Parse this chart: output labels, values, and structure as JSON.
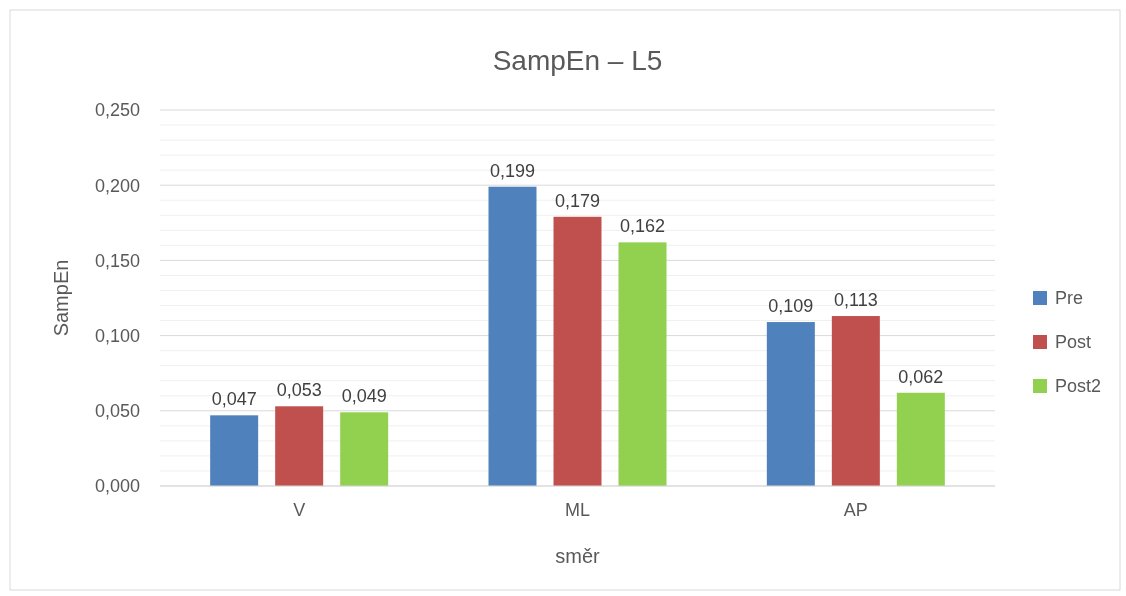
{
  "chart_data": {
    "type": "bar",
    "title": "SampEn – L5",
    "xlabel": "směr",
    "ylabel": "SampEn",
    "categories": [
      "V",
      "ML",
      "AP"
    ],
    "series": [
      {
        "name": "Pre",
        "color": "#4f81bd",
        "values": [
          0.047,
          0.199,
          0.109
        ],
        "value_labels": [
          "0,047",
          "0,199",
          "0,109"
        ]
      },
      {
        "name": "Post",
        "color": "#c0504d",
        "values": [
          0.053,
          0.179,
          0.113
        ],
        "value_labels": [
          "0,053",
          "0,179",
          "0,113"
        ]
      },
      {
        "name": "Post2",
        "color": "#92d050",
        "values": [
          0.049,
          0.162,
          0.062
        ],
        "value_labels": [
          "0,049",
          "0,162",
          "0,062"
        ]
      }
    ],
    "ylim": [
      0,
      0.25
    ],
    "yticks": [
      {
        "value": 0,
        "label": "0,000"
      },
      {
        "value": 0.01,
        "label": null
      },
      {
        "value": 0.02,
        "label": null
      },
      {
        "value": 0.03,
        "label": null
      },
      {
        "value": 0.04,
        "label": null
      },
      {
        "value": 0.05,
        "label": "0,050"
      },
      {
        "value": 0.06,
        "label": null
      },
      {
        "value": 0.07,
        "label": null
      },
      {
        "value": 0.08,
        "label": null
      },
      {
        "value": 0.09,
        "label": null
      },
      {
        "value": 0.1,
        "label": "0,100"
      },
      {
        "value": 0.11,
        "label": null
      },
      {
        "value": 0.12,
        "label": null
      },
      {
        "value": 0.13,
        "label": null
      },
      {
        "value": 0.14,
        "label": null
      },
      {
        "value": 0.15,
        "label": "0,150"
      },
      {
        "value": 0.16,
        "label": null
      },
      {
        "value": 0.17,
        "label": null
      },
      {
        "value": 0.18,
        "label": null
      },
      {
        "value": 0.19,
        "label": null
      },
      {
        "value": 0.2,
        "label": "0,200"
      },
      {
        "value": 0.21,
        "label": null
      },
      {
        "value": 0.22,
        "label": null
      },
      {
        "value": 0.23,
        "label": null
      },
      {
        "value": 0.24,
        "label": null
      },
      {
        "value": 0.25,
        "label": "0,250"
      }
    ],
    "grid": "y",
    "legend": "right"
  }
}
